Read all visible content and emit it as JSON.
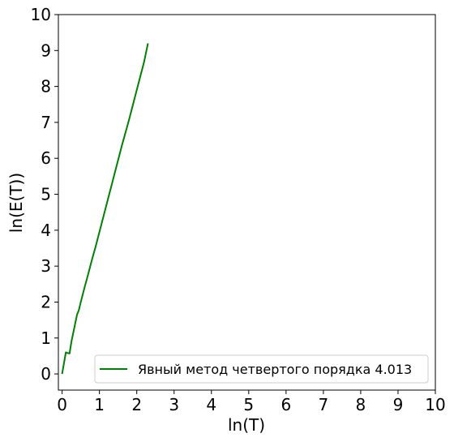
{
  "chart_data": {
    "type": "line",
    "title": "",
    "xlabel": "ln(T)",
    "ylabel": "ln(E(T))",
    "xlim": [
      -0.1,
      10
    ],
    "ylim": [
      -0.45,
      10
    ],
    "xticks": [
      0,
      1,
      2,
      3,
      4,
      5,
      6,
      7,
      8,
      9,
      10
    ],
    "yticks": [
      0,
      1,
      2,
      3,
      4,
      5,
      6,
      7,
      8,
      9,
      10
    ],
    "xtick_labels": [
      "0",
      "1",
      "2",
      "3",
      "4",
      "5",
      "6",
      "7",
      "8",
      "9",
      "10"
    ],
    "ytick_labels": [
      "0",
      "1",
      "2",
      "3",
      "4",
      "5",
      "6",
      "7",
      "8",
      "9",
      "10"
    ],
    "grid": false,
    "legend_position": "bottom-right",
    "series": [
      {
        "name": "Явный метод четвертого порядка 4.013",
        "color": "#008000",
        "x": [
          0.0,
          0.05,
          0.1,
          0.15,
          0.2,
          0.25,
          0.3,
          0.35,
          0.4,
          0.45,
          0.5,
          0.6,
          0.7,
          0.8,
          0.9,
          1.0,
          1.2,
          1.4,
          1.6,
          1.8,
          2.0,
          2.1,
          2.2,
          2.3
        ],
        "y": [
          0.0,
          0.3,
          0.6,
          0.58,
          0.57,
          0.9,
          1.15,
          1.4,
          1.65,
          1.78,
          2.0,
          2.4,
          2.78,
          3.18,
          3.55,
          3.95,
          4.75,
          5.55,
          6.35,
          7.1,
          7.9,
          8.3,
          8.7,
          9.2
        ]
      }
    ]
  }
}
